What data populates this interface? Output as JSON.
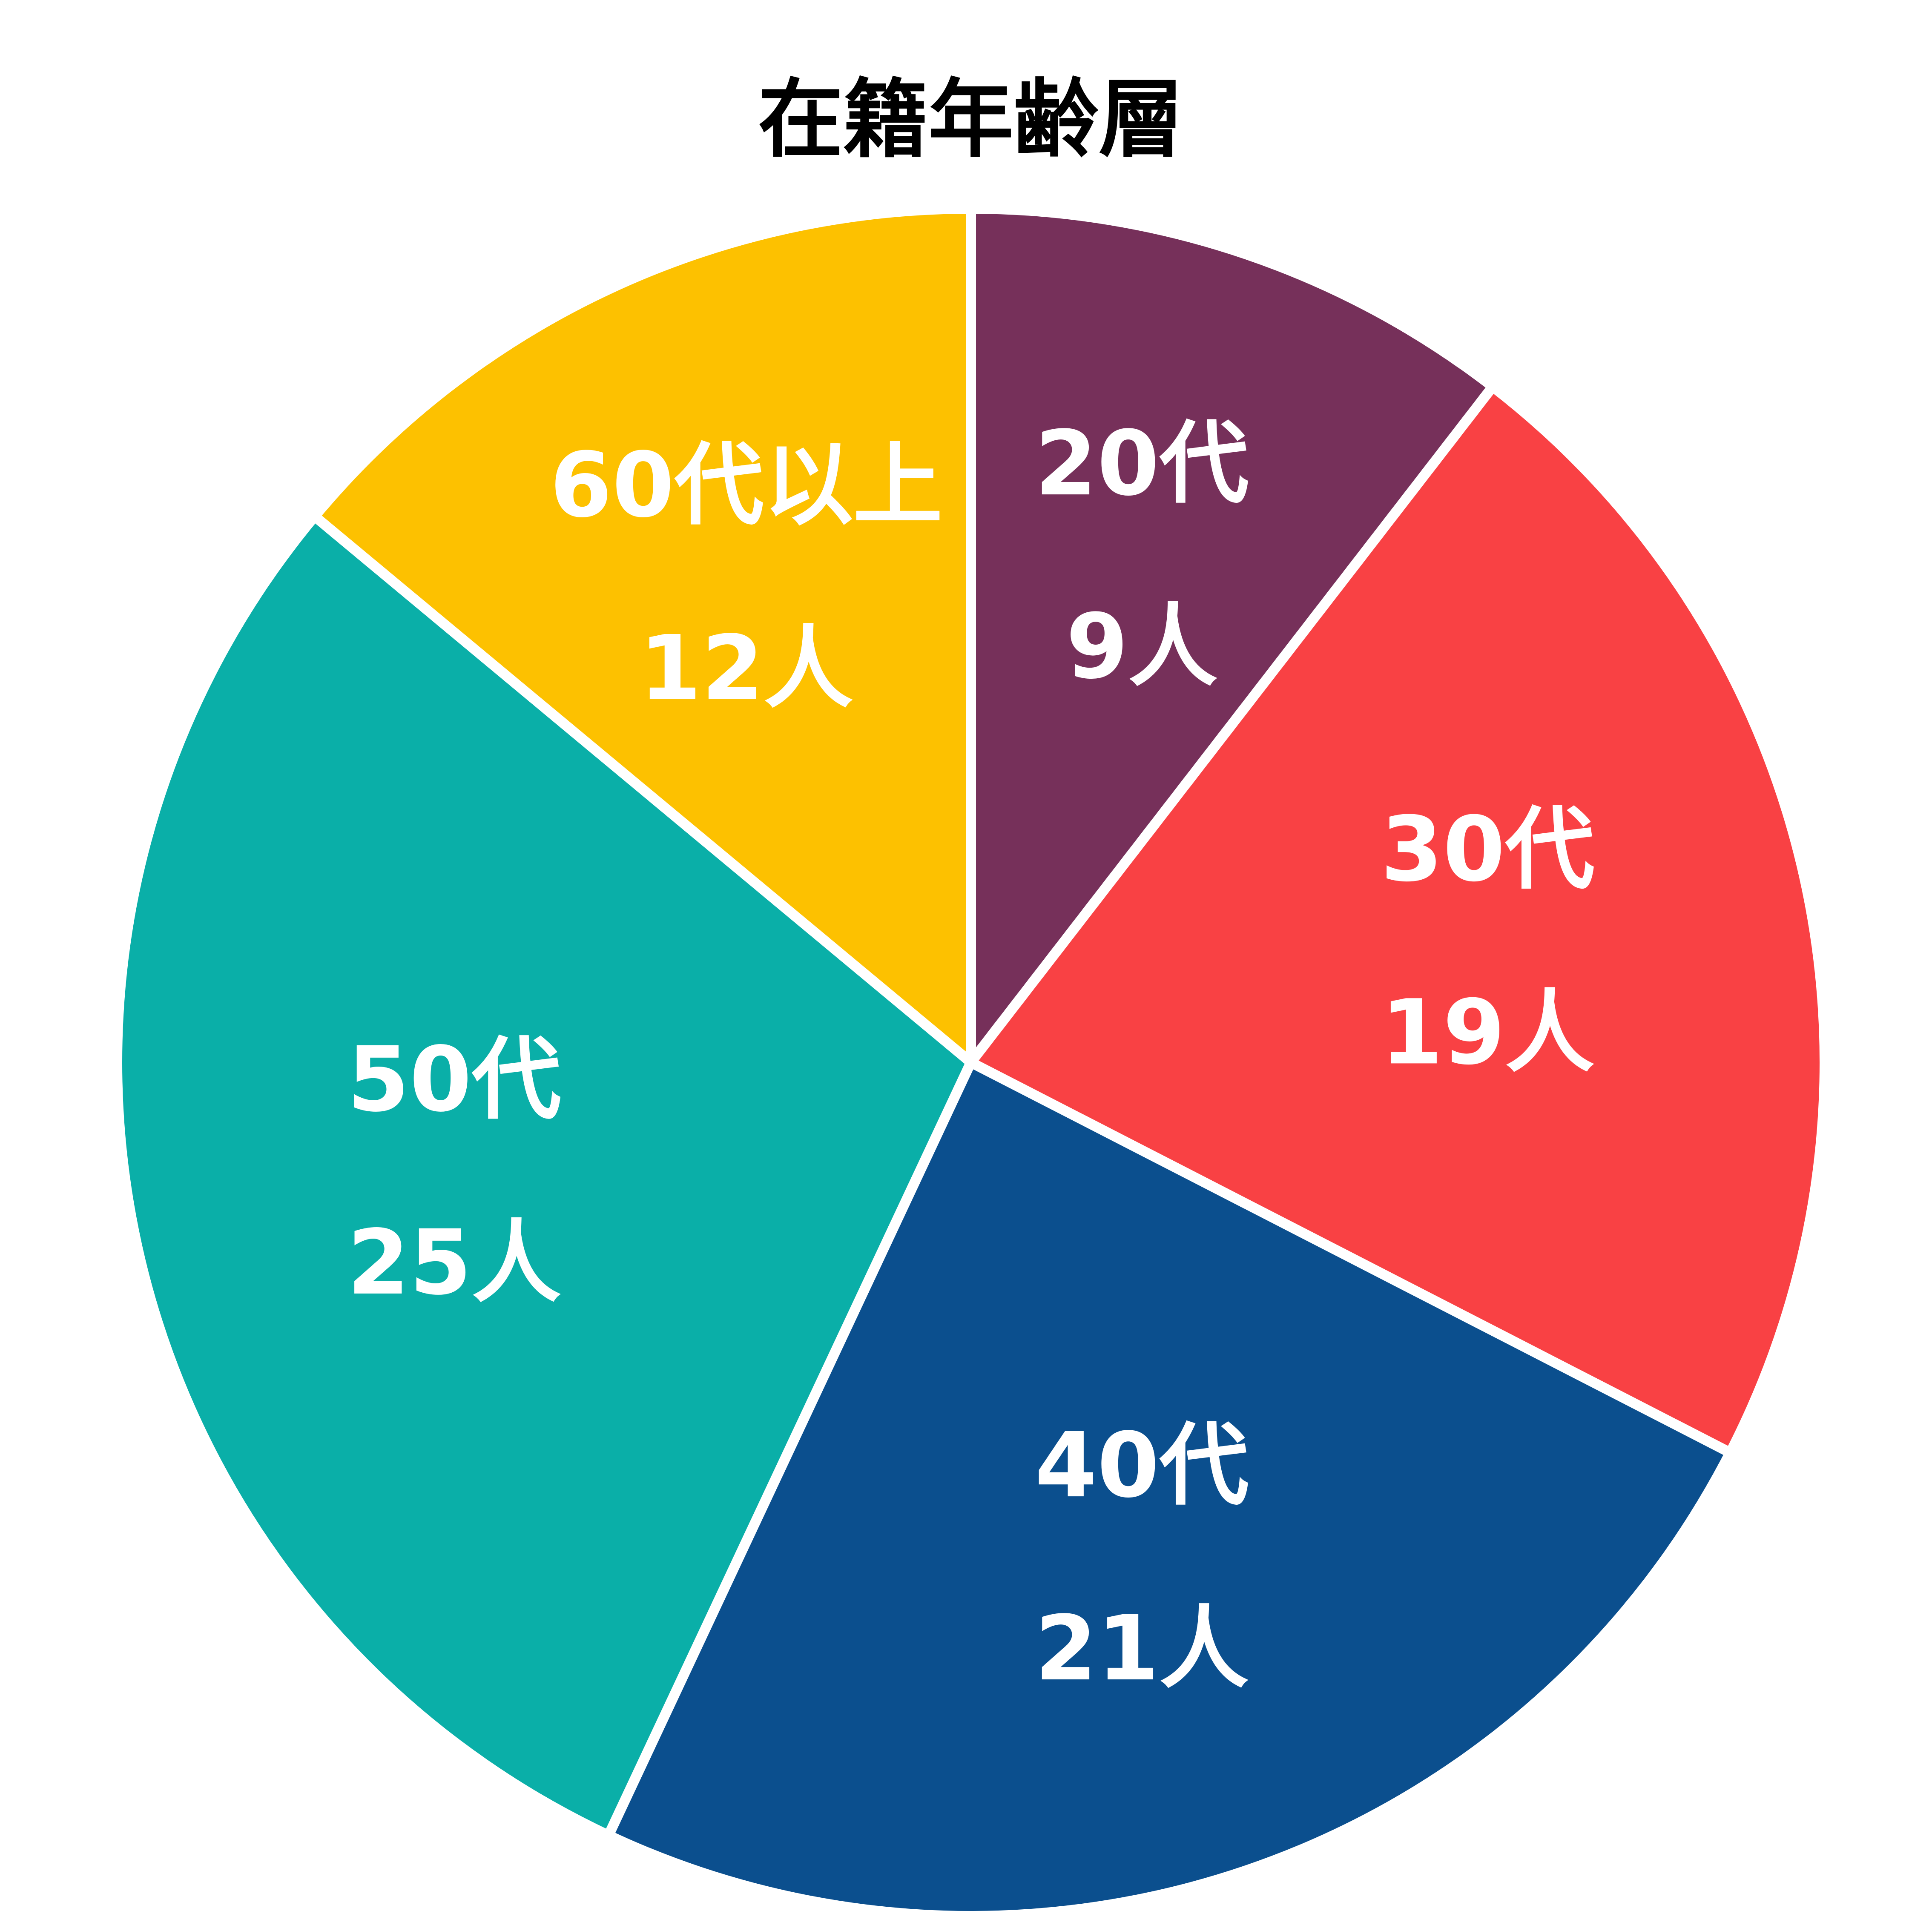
{
  "chart_data": {
    "type": "pie",
    "title": "在籍年齢層",
    "categories": [
      "20代",
      "30代",
      "40代",
      "50代",
      "60代以上"
    ],
    "values": [
      9,
      19,
      21,
      25,
      12
    ],
    "value_labels": [
      "9人",
      "19人",
      "21人",
      "25人",
      "12人"
    ],
    "colors": [
      "#76305a",
      "#f94144",
      "#0b4f8e",
      "#0aafa8",
      "#fdc100"
    ]
  }
}
